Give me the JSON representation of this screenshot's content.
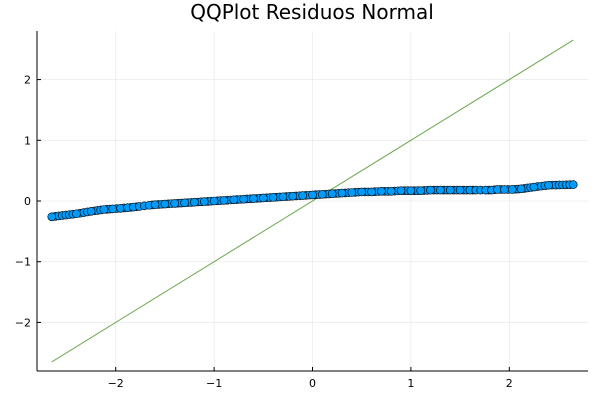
{
  "chart_data": {
    "type": "scatter",
    "title": "QQPlot Residuos Normal",
    "xlim": [
      -2.8,
      2.8
    ],
    "ylim": [
      -2.8,
      2.8
    ],
    "xticks": [
      -2,
      -1,
      0,
      1,
      2
    ],
    "yticks": [
      -2,
      -1,
      0,
      1,
      2
    ],
    "x_tick_labels": [
      "−2",
      "−1",
      "0",
      "1",
      "2"
    ],
    "y_tick_labels": [
      "−2",
      "−1",
      "0",
      "1",
      "2"
    ],
    "grid": true,
    "legend": "none",
    "colors": {
      "points": "#009af9",
      "point_edge": "#000000",
      "reference_line": "#6aa84f"
    },
    "series": [
      {
        "type": "scatter",
        "x": [
          -2.65,
          -2.4,
          -2.25,
          -2.12,
          -2.03,
          -1.95,
          -1.88,
          -1.82,
          -1.76,
          -1.71,
          -1.66,
          -1.6,
          -1.5,
          -1.4,
          -1.3,
          -1.2,
          -1.1,
          -1.0,
          -0.9,
          -0.8,
          -0.7,
          -0.6,
          -0.5,
          -0.4,
          -0.3,
          -0.2,
          -0.1,
          0.0,
          0.1,
          0.2,
          0.3,
          0.4,
          0.5,
          0.6,
          0.7,
          0.8,
          0.9,
          1.0,
          1.1,
          1.2,
          1.3,
          1.4,
          1.5,
          1.6,
          1.66,
          1.71,
          1.76,
          1.82,
          1.88,
          1.95,
          2.03,
          2.12,
          2.25,
          2.4,
          2.65
        ],
        "y": [
          -0.26,
          -0.21,
          -0.17,
          -0.14,
          -0.13,
          -0.12,
          -0.11,
          -0.1,
          -0.09,
          -0.08,
          -0.07,
          -0.06,
          -0.05,
          -0.04,
          -0.03,
          -0.02,
          -0.01,
          0.0,
          0.01,
          0.02,
          0.03,
          0.04,
          0.05,
          0.06,
          0.07,
          0.08,
          0.09,
          0.1,
          0.11,
          0.12,
          0.13,
          0.14,
          0.15,
          0.15,
          0.16,
          0.16,
          0.17,
          0.17,
          0.17,
          0.18,
          0.18,
          0.18,
          0.18,
          0.18,
          0.18,
          0.18,
          0.18,
          0.18,
          0.19,
          0.19,
          0.19,
          0.2,
          0.23,
          0.26,
          0.27
        ]
      },
      {
        "type": "line",
        "x": [
          -2.65,
          2.65
        ],
        "y": [
          -2.65,
          2.65
        ]
      }
    ]
  }
}
